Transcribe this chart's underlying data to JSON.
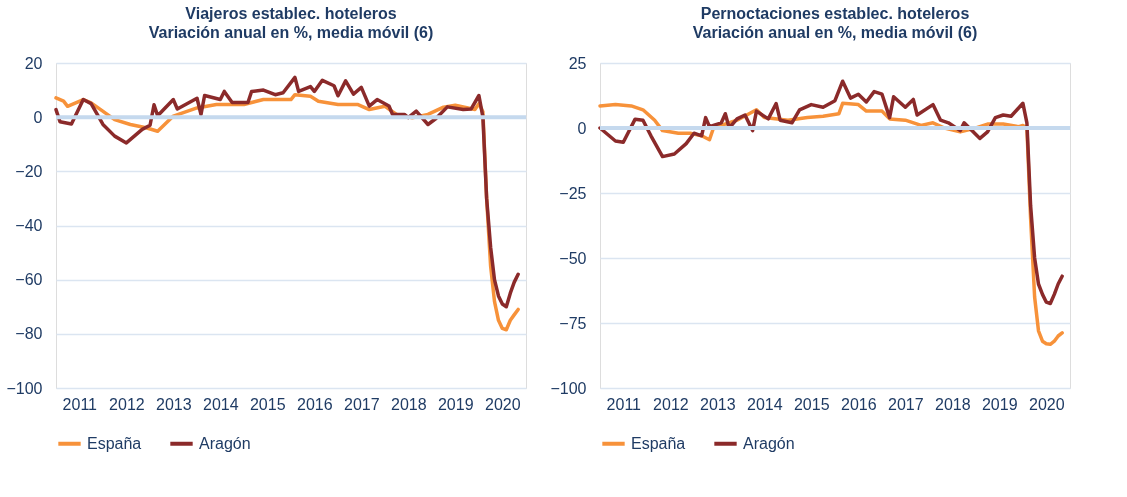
{
  "chart_data": [
    {
      "type": "line",
      "title": "Viajeros establec. hoteleros",
      "subtitle": "Variación anual en %, media móvil (6)",
      "xlim": [
        "2011-01",
        "2021-01"
      ],
      "xticks": [
        {
          "value": "2011-07",
          "label": "2011"
        },
        {
          "value": "2012-07",
          "label": "2012"
        },
        {
          "value": "2013-07",
          "label": "2013"
        },
        {
          "value": "2014-07",
          "label": "2014"
        },
        {
          "value": "2015-07",
          "label": "2015"
        },
        {
          "value": "2016-07",
          "label": "2016"
        },
        {
          "value": "2017-07",
          "label": "2017"
        },
        {
          "value": "2018-07",
          "label": "2018"
        },
        {
          "value": "2019-07",
          "label": "2019"
        },
        {
          "value": "2020-07",
          "label": "2020"
        }
      ],
      "ylim": [
        -100,
        20
      ],
      "yticks": [
        -100,
        -80,
        -60,
        -40,
        -20,
        0,
        20
      ],
      "grid": "y",
      "legend": "bottom",
      "ref_lines": [
        {
          "axis": "y",
          "value": 0,
          "color": "#c5d9ee"
        }
      ],
      "series": [
        {
          "name": "España",
          "color": "#f7923a",
          "x": [
            "2011-01",
            "2011-03",
            "2011-04",
            "2011-08",
            "2011-10",
            "2012-04",
            "2012-08",
            "2012-12",
            "2013-03",
            "2013-07",
            "2014-01",
            "2014-06",
            "2015-01",
            "2015-06",
            "2016-01",
            "2016-02",
            "2016-06",
            "2016-08",
            "2017-01",
            "2017-06",
            "2017-09",
            "2018-01",
            "2018-04",
            "2018-08",
            "2018-12",
            "2019-04",
            "2019-07",
            "2019-12",
            "2020-01",
            "2020-02",
            "2020-03",
            "2020-04",
            "2020-05",
            "2020-06",
            "2020-07",
            "2020-08",
            "2020-09",
            "2020-10",
            "2020-11"
          ],
          "values": [
            7.1,
            5.9,
            4,
            6.5,
            5.3,
            -0.9,
            -2.7,
            -3.9,
            -5.2,
            0.4,
            3.4,
            4.7,
            4.7,
            6.5,
            6.5,
            8.3,
            7.7,
            5.9,
            4.7,
            4.7,
            2.8,
            4,
            1,
            -0.2,
            1,
            3.7,
            4.4,
            2.8,
            5,
            2,
            -30,
            -55,
            -68,
            -75,
            -78,
            -78.5,
            -75,
            -73,
            -71
          ]
        },
        {
          "name": "Aragón",
          "color": "#8b2a2a",
          "x": [
            "2011-01",
            "2011-02",
            "2011-05",
            "2011-08",
            "2011-10",
            "2012-01",
            "2012-04",
            "2012-07",
            "2012-11",
            "2013-01",
            "2013-02",
            "2013-03",
            "2013-07",
            "2013-08",
            "2014-01",
            "2014-02",
            "2014-03",
            "2014-07",
            "2014-08",
            "2014-10",
            "2015-02",
            "2015-03",
            "2015-06",
            "2015-09",
            "2015-11",
            "2016-02",
            "2016-03",
            "2016-06",
            "2016-07",
            "2016-09",
            "2016-12",
            "2017-01",
            "2017-03",
            "2017-05",
            "2017-07",
            "2017-09",
            "2017-11",
            "2018-02",
            "2018-03",
            "2018-06",
            "2018-07",
            "2018-09",
            "2018-12",
            "2019-02",
            "2019-05",
            "2019-09",
            "2019-11",
            "2020-01",
            "2020-02",
            "2020-03",
            "2020-04",
            "2020-05",
            "2020-06",
            "2020-07",
            "2020-08",
            "2020-09",
            "2020-10",
            "2020-11"
          ],
          "values": [
            2.8,
            -1.7,
            -2.5,
            6.5,
            5,
            -2.7,
            -7,
            -9.5,
            -4.5,
            -3,
            4.6,
            0.5,
            6.5,
            3,
            7,
            1,
            8,
            6.5,
            9.5,
            5.4,
            5.4,
            9.5,
            10,
            8.3,
            9,
            14.7,
            9.5,
            11.3,
            9.5,
            13.6,
            11.6,
            7.9,
            13.4,
            8.5,
            11,
            4.1,
            6.5,
            4.1,
            1,
            1,
            -0.2,
            2.2,
            -2.7,
            -0.5,
            3.8,
            2.8,
            3,
            8,
            0,
            -30,
            -48,
            -60,
            -66,
            -69,
            -70,
            -65,
            -61,
            -58
          ]
        }
      ]
    },
    {
      "type": "line",
      "title": "Pernoctaciones establec. hoteleros",
      "subtitle": "Variación anual en %, media móvil (6)",
      "xlim": [
        "2011-01",
        "2021-01"
      ],
      "xticks": [
        {
          "value": "2011-07",
          "label": "2011"
        },
        {
          "value": "2012-07",
          "label": "2012"
        },
        {
          "value": "2013-07",
          "label": "2013"
        },
        {
          "value": "2014-07",
          "label": "2014"
        },
        {
          "value": "2015-07",
          "label": "2015"
        },
        {
          "value": "2016-07",
          "label": "2016"
        },
        {
          "value": "2017-07",
          "label": "2017"
        },
        {
          "value": "2018-07",
          "label": "2018"
        },
        {
          "value": "2019-07",
          "label": "2019"
        },
        {
          "value": "2020-07",
          "label": "2020"
        }
      ],
      "ylim": [
        -100,
        25
      ],
      "yticks": [
        -100,
        -75,
        -50,
        -25,
        0,
        25
      ],
      "grid": "y",
      "legend": "bottom",
      "ref_lines": [
        {
          "axis": "y",
          "value": 0,
          "color": "#c5d9ee"
        }
      ],
      "series": [
        {
          "name": "España",
          "color": "#f7923a",
          "x": [
            "2011-01",
            "2011-05",
            "2011-09",
            "2011-12",
            "2012-03",
            "2012-05",
            "2012-09",
            "2012-12",
            "2013-03",
            "2013-05",
            "2013-06",
            "2013-12",
            "2014-05",
            "2014-07",
            "2015-01",
            "2015-06",
            "2015-10",
            "2016-02",
            "2016-03",
            "2016-07",
            "2016-09",
            "2017-01",
            "2017-03",
            "2017-07",
            "2017-11",
            "2018-02",
            "2018-05",
            "2018-09",
            "2019-01",
            "2019-04",
            "2019-08",
            "2019-12",
            "2020-01",
            "2020-02",
            "2020-03",
            "2020-04",
            "2020-05",
            "2020-06",
            "2020-07",
            "2020-08",
            "2020-09",
            "2020-10",
            "2020-11"
          ],
          "values": [
            8.5,
            9,
            8.5,
            7,
            3,
            -1,
            -2,
            -2,
            -3,
            -4.5,
            0,
            3,
            7,
            4,
            3,
            4,
            4.5,
            5.5,
            9.5,
            9,
            6.5,
            6.5,
            3.5,
            3,
            1,
            2,
            0,
            -1.5,
            0,
            1.5,
            1.5,
            0.5,
            1,
            0,
            -35,
            -65,
            -78,
            -82,
            -83,
            -83.2,
            -82,
            -80,
            -78.8
          ]
        },
        {
          "name": "Aragón",
          "color": "#8b2a2a",
          "x": [
            "2011-01",
            "2011-05",
            "2011-07",
            "2011-10",
            "2011-12",
            "2012-02",
            "2012-05",
            "2012-08",
            "2012-11",
            "2013-01",
            "2013-03",
            "2013-04",
            "2013-05",
            "2013-08",
            "2013-09",
            "2013-10",
            "2013-12",
            "2014-02",
            "2014-04",
            "2014-05",
            "2014-08",
            "2014-10",
            "2014-11",
            "2015-02",
            "2015-04",
            "2015-07",
            "2015-10",
            "2016-01",
            "2016-03",
            "2016-05",
            "2016-07",
            "2016-09",
            "2016-11",
            "2017-01",
            "2017-03",
            "2017-04",
            "2017-07",
            "2017-09",
            "2017-10",
            "2018-02",
            "2018-04",
            "2018-06",
            "2018-09",
            "2018-10",
            "2019-02",
            "2019-04",
            "2019-06",
            "2019-08",
            "2019-10",
            "2020-01",
            "2020-02",
            "2020-03",
            "2020-04",
            "2020-05",
            "2020-06",
            "2020-07",
            "2020-08",
            "2020-09",
            "2020-10",
            "2020-11"
          ],
          "values": [
            0,
            -5,
            -5.5,
            3.4,
            3,
            -3,
            -11,
            -10,
            -6,
            -2,
            -3,
            4,
            0.5,
            2,
            5.5,
            0,
            3.5,
            5,
            -1,
            6.5,
            3.5,
            9.4,
            3,
            2,
            7,
            9,
            8,
            10.5,
            18,
            11.5,
            13,
            10,
            14,
            13,
            4,
            12,
            8,
            11,
            5,
            9,
            3,
            2,
            -1,
            2,
            -4,
            -1.5,
            4,
            5,
            4.5,
            9.5,
            2,
            -30,
            -50,
            -60,
            -64,
            -67,
            -67.5,
            -64,
            -60,
            -57
          ]
        }
      ]
    }
  ]
}
